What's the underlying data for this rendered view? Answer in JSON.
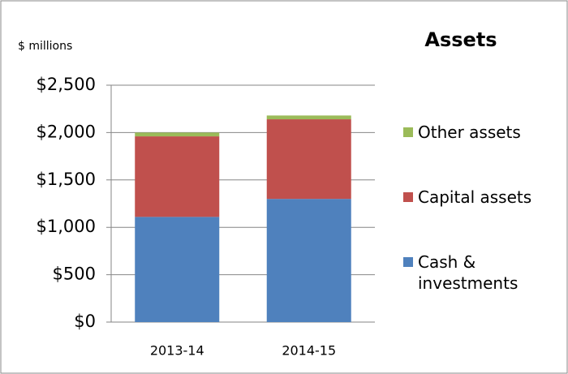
{
  "chart_data": {
    "type": "stacked_bar",
    "title": "Assets",
    "y_axis_label": "$ millions",
    "categories": [
      "2013-14",
      "2014-15"
    ],
    "series": [
      {
        "name": "Cash & investments",
        "color": "#4f81bd",
        "values": [
          1110,
          1300
        ]
      },
      {
        "name": "Capital assets",
        "color": "#c0504d",
        "values": [
          850,
          840
        ]
      },
      {
        "name": "Other assets",
        "color": "#9bbb59",
        "values": [
          40,
          40
        ]
      }
    ],
    "ylim": [
      0,
      2500
    ],
    "yticks": [
      {
        "value": 0,
        "label": "$0"
      },
      {
        "value": 500,
        "label": "$500"
      },
      {
        "value": 1000,
        "label": "$1,000"
      },
      {
        "value": 1500,
        "label": "$1,500"
      },
      {
        "value": 2000,
        "label": "$2,000"
      },
      {
        "value": 2500,
        "label": "$2,500"
      }
    ],
    "grid": true,
    "legend": "right"
  }
}
